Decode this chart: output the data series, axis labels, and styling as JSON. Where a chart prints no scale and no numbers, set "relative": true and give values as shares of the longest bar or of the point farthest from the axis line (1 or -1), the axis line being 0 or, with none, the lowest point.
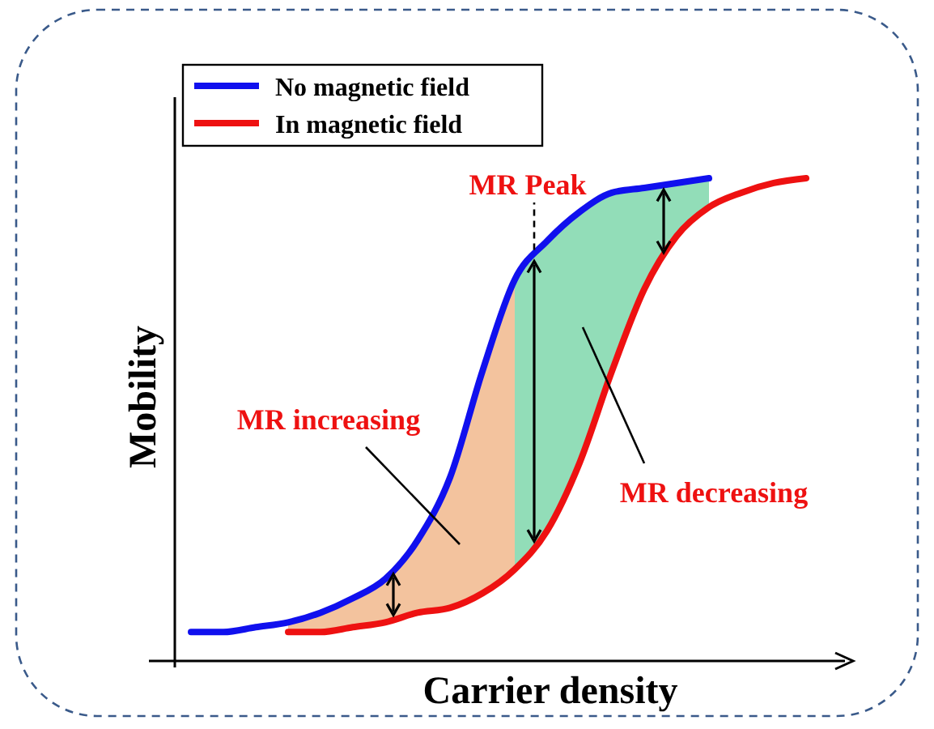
{
  "chart_data": {
    "type": "line",
    "relative": true,
    "xlabel": "Carrier density",
    "ylabel": "Mobility",
    "legend": "top left",
    "marker": "none",
    "line_style": "solid",
    "categories": [
      null,
      null,
      null,
      null,
      null,
      null,
      null,
      null,
      null,
      null,
      null,
      null,
      null,
      null,
      null,
      null,
      null,
      null,
      null,
      null
    ],
    "series": [
      {
        "name": "No magnetic field",
        "color": "#1010ee",
        "values": [
          0.06,
          0.06,
          0.07,
          0.08,
          0.1,
          0.13,
          0.17,
          0.25,
          0.38,
          0.6,
          0.79,
          0.87,
          0.93,
          0.97,
          0.98,
          0.99,
          1.0,
          null,
          null,
          null
        ]
      },
      {
        "name": "In magnetic field",
        "color": "#ee1111",
        "values": [
          null,
          null,
          null,
          0.06,
          0.06,
          0.07,
          0.08,
          0.1,
          0.11,
          0.14,
          0.19,
          0.27,
          0.41,
          0.6,
          0.77,
          0.88,
          0.94,
          0.97,
          0.99,
          1.0
        ]
      }
    ],
    "annotations": [
      "MR Peak",
      "MR increasing",
      "MR decreasing"
    ]
  }
}
